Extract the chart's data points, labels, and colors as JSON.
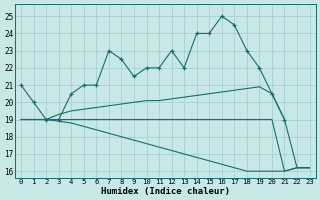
{
  "xlabel": "Humidex (Indice chaleur)",
  "bg_color": "#c8e8e8",
  "line_color": "#1a6b6b",
  "grid_color": "#a0cccc",
  "xlim": [
    -0.5,
    23.5
  ],
  "ylim": [
    15.6,
    25.7
  ],
  "xticks": [
    0,
    1,
    2,
    3,
    4,
    5,
    6,
    7,
    8,
    9,
    10,
    11,
    12,
    13,
    14,
    15,
    16,
    17,
    18,
    19,
    20,
    21,
    22,
    23
  ],
  "yticks": [
    16,
    17,
    18,
    19,
    20,
    21,
    22,
    23,
    24,
    25
  ],
  "line1_x": [
    0,
    1,
    2,
    3,
    4,
    5,
    6,
    7,
    8,
    9,
    10,
    11,
    12,
    13,
    14,
    15,
    16,
    17,
    18,
    19,
    20,
    21
  ],
  "line1_y": [
    21,
    20,
    19,
    19,
    20.5,
    21,
    21,
    23,
    22.5,
    21.5,
    22,
    22,
    23,
    22,
    24,
    24,
    25,
    24.5,
    23,
    22,
    20.5,
    19
  ],
  "line2_x": [
    0,
    2,
    3,
    4,
    5,
    6,
    7,
    8,
    9,
    10,
    11,
    12,
    13,
    14,
    15,
    16,
    17,
    18,
    19,
    20,
    21,
    22,
    23
  ],
  "line2_y": [
    19,
    19,
    19.3,
    19.5,
    19.6,
    19.7,
    19.8,
    19.9,
    20.0,
    20.1,
    20.1,
    20.2,
    20.3,
    20.4,
    20.5,
    20.6,
    20.7,
    20.8,
    20.9,
    20.5,
    19,
    16.2,
    16.2
  ],
  "line3_x": [
    0,
    2,
    3,
    4,
    5,
    6,
    7,
    8,
    9,
    10,
    11,
    12,
    13,
    14,
    15,
    16,
    17,
    18,
    19,
    20,
    21,
    22,
    23
  ],
  "line3_y": [
    19,
    19,
    19,
    19,
    19,
    19,
    19,
    19,
    19,
    19,
    19,
    19,
    19,
    19,
    19,
    19,
    19,
    19,
    19,
    19,
    16,
    16.2,
    16.2
  ],
  "line4_x": [
    0,
    2,
    3,
    4,
    5,
    6,
    7,
    8,
    9,
    10,
    11,
    12,
    13,
    14,
    15,
    16,
    17,
    18,
    19,
    20,
    21,
    22,
    23
  ],
  "line4_y": [
    19,
    19,
    18.9,
    18.8,
    18.6,
    18.4,
    18.2,
    18.0,
    17.8,
    17.6,
    17.4,
    17.2,
    17.0,
    16.8,
    16.6,
    16.4,
    16.2,
    16.0,
    16.0,
    16.0,
    16.0,
    16.2,
    16.2
  ]
}
